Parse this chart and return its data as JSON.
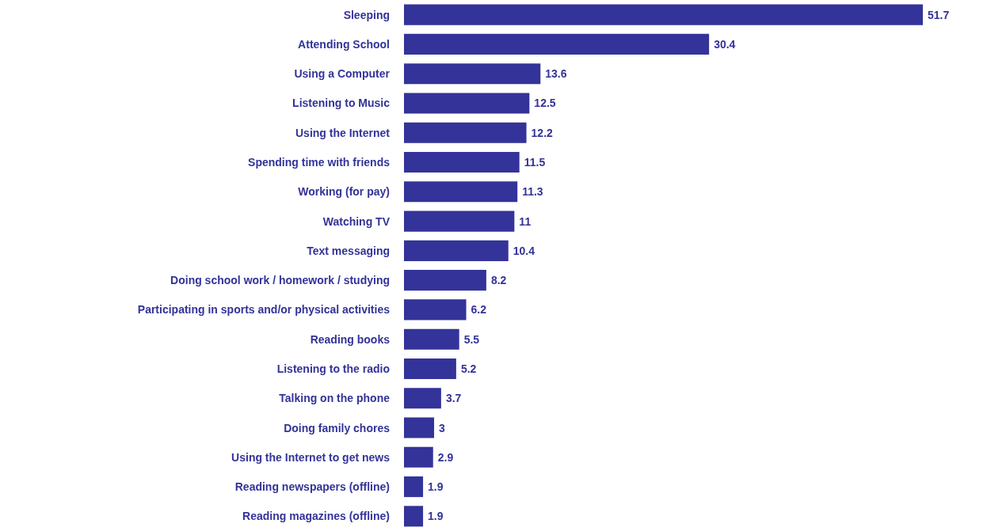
{
  "chart_data": {
    "type": "bar",
    "orientation": "horizontal",
    "data_labels": true,
    "color": "#333399",
    "categories": [
      "Sleeping",
      "Attending School",
      "Using a Computer",
      "Listening to Music",
      "Using the Internet",
      "Spending time with friends",
      "Working (for pay)",
      "Watching TV",
      "Text messaging",
      "Doing school work / homework / studying",
      "Participating in sports and/or physical activities",
      "Reading books",
      "Listening to the radio",
      "Talking on the phone",
      "Doing family chores",
      "Using the Internet to get news",
      "Reading newspapers (offline)",
      "Reading magazines (offline)"
    ],
    "values": [
      51.7,
      30.4,
      13.6,
      12.5,
      12.2,
      11.5,
      11.3,
      11,
      10.4,
      8.2,
      6.2,
      5.5,
      5.2,
      3.7,
      3,
      2.9,
      1.9,
      1.9
    ]
  }
}
